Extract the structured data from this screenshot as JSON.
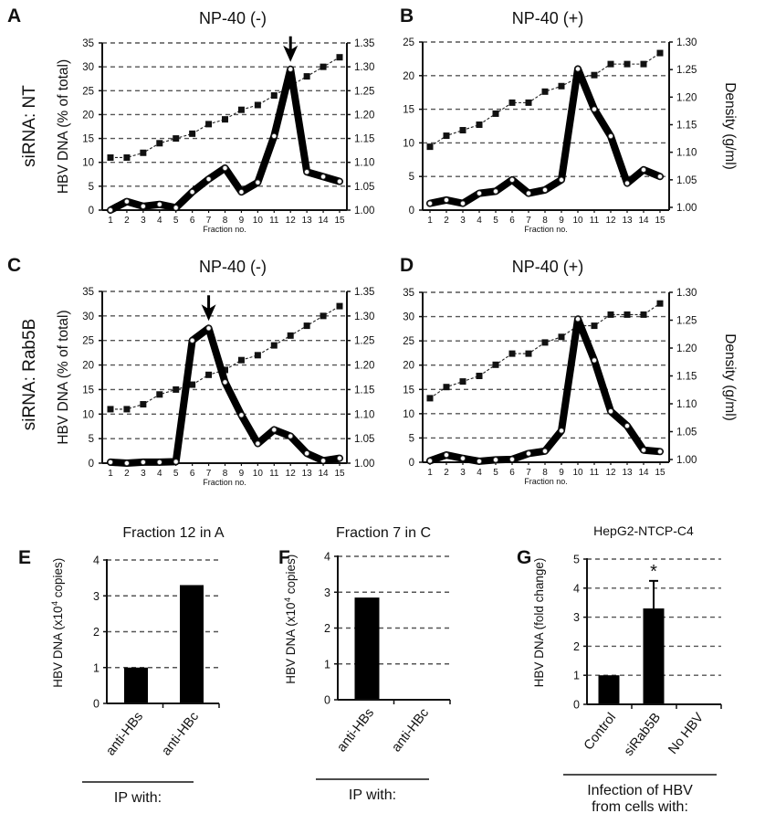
{
  "panel_labels": [
    "A",
    "B",
    "C",
    "D",
    "E",
    "F",
    "G"
  ],
  "row_labels": [
    "siRNA: NT",
    "siRNA: Rab5B"
  ],
  "chart_data": [
    {
      "type": "line",
      "panel": "A",
      "title": "NP-40 (-)",
      "xlabel": "Fraction no.",
      "ylabel": "HBV DNA (% of total)",
      "ylabel_right": "",
      "x": [
        1,
        2,
        3,
        4,
        5,
        6,
        7,
        8,
        9,
        10,
        11,
        12,
        13,
        14,
        15
      ],
      "ylim": [
        0,
        35
      ],
      "yticks": [
        0,
        5,
        10,
        15,
        20,
        25,
        30,
        35
      ],
      "ylim_right": [
        1.0,
        1.35
      ],
      "yticks_right": [
        "1.00",
        "1.05",
        "1.10",
        "1.15",
        "1.20",
        "1.25",
        "1.30",
        "1.35"
      ],
      "grid": true,
      "arrow_at": 12,
      "series": [
        {
          "axis": "left",
          "style": "thick",
          "values": [
            0,
            1.8,
            0.8,
            1.2,
            0.5,
            3.8,
            6.5,
            8.8,
            3.8,
            5.8,
            15.5,
            29.5,
            8,
            7,
            6
          ]
        },
        {
          "axis": "right",
          "style": "dashed-squares",
          "values": [
            1.11,
            1.11,
            1.12,
            1.14,
            1.15,
            1.16,
            1.18,
            1.19,
            1.21,
            1.22,
            1.24,
            1.26,
            1.28,
            1.3,
            1.32
          ]
        }
      ]
    },
    {
      "type": "line",
      "panel": "B",
      "title": "NP-40 (+)",
      "xlabel": "Fraction no.",
      "ylabel": "",
      "ylabel_right": "Density (g/ml)",
      "x": [
        1,
        2,
        3,
        4,
        5,
        6,
        7,
        8,
        9,
        10,
        11,
        12,
        13,
        14,
        15
      ],
      "ylim": [
        0,
        25
      ],
      "yticks": [
        0,
        5,
        10,
        15,
        20,
        25
      ],
      "ylim_right": [
        1.0,
        1.3
      ],
      "yticks_right": [
        "1.00",
        "1.05",
        "1.10",
        "1.15",
        "1.20",
        "1.25",
        "1.30"
      ],
      "grid": true,
      "series": [
        {
          "axis": "left",
          "style": "thick",
          "values": [
            1,
            1.5,
            1,
            2.5,
            2.8,
            4.5,
            2.5,
            3,
            4.5,
            21,
            15,
            11,
            4,
            6,
            5
          ]
        },
        {
          "axis": "right",
          "style": "dashed-squares",
          "values": [
            1.11,
            1.13,
            1.14,
            1.15,
            1.17,
            1.19,
            1.19,
            1.21,
            1.22,
            1.235,
            1.24,
            1.26,
            1.26,
            1.26,
            1.28
          ]
        }
      ]
    },
    {
      "type": "line",
      "panel": "C",
      "title": "NP-40 (-)",
      "xlabel": "Fraction no.",
      "ylabel": "HBV DNA (% of total)",
      "ylabel_right": "",
      "x": [
        1,
        2,
        3,
        4,
        5,
        6,
        7,
        8,
        9,
        10,
        11,
        12,
        13,
        14,
        15
      ],
      "ylim": [
        0,
        35
      ],
      "yticks": [
        0,
        5,
        10,
        15,
        20,
        25,
        30,
        35
      ],
      "ylim_right": [
        1.0,
        1.35
      ],
      "yticks_right": [
        "1.00",
        "1.05",
        "1.10",
        "1.15",
        "1.20",
        "1.25",
        "1.30",
        "1.35"
      ],
      "grid": true,
      "arrow_at": 7,
      "series": [
        {
          "axis": "left",
          "style": "thick",
          "values": [
            0.2,
            0,
            0.2,
            0.2,
            0.3,
            25,
            27.5,
            16.5,
            9.8,
            4,
            6.8,
            5.5,
            2,
            0.5,
            1
          ]
        },
        {
          "axis": "right",
          "style": "dashed-squares",
          "values": [
            1.11,
            1.11,
            1.12,
            1.14,
            1.15,
            1.16,
            1.18,
            1.19,
            1.21,
            1.22,
            1.24,
            1.26,
            1.28,
            1.3,
            1.32
          ]
        }
      ]
    },
    {
      "type": "line",
      "panel": "D",
      "title": "NP-40 (+)",
      "xlabel": "Fraction no.",
      "ylabel": "",
      "ylabel_right": "Density (g/ml)",
      "x": [
        1,
        2,
        3,
        4,
        5,
        6,
        7,
        8,
        9,
        10,
        11,
        12,
        13,
        14,
        15
      ],
      "ylim": [
        0,
        35
      ],
      "yticks": [
        0,
        5,
        10,
        15,
        20,
        25,
        30,
        35
      ],
      "ylim_right": [
        1.0,
        1.3
      ],
      "yticks_right": [
        "1.00",
        "1.05",
        "1.10",
        "1.15",
        "1.20",
        "1.25",
        "1.30"
      ],
      "grid": true,
      "series": [
        {
          "axis": "left",
          "style": "thick",
          "values": [
            0.3,
            1.5,
            0.8,
            0.2,
            0.5,
            0.6,
            1.8,
            2.3,
            6.5,
            29.5,
            21,
            10.5,
            7.5,
            2.5,
            2.2
          ]
        },
        {
          "axis": "right",
          "style": "dashed-squares",
          "values": [
            1.11,
            1.13,
            1.14,
            1.15,
            1.17,
            1.19,
            1.19,
            1.21,
            1.22,
            1.24,
            1.24,
            1.26,
            1.26,
            1.26,
            1.28
          ]
        }
      ]
    },
    {
      "type": "bar",
      "panel": "E",
      "title": "Fraction 12 in A",
      "ylabel": "HBV DNA (x10^4 copies)",
      "ylabel_main": "HBV DNA (x10",
      "ylabel_sup": "4",
      "ylabel_end": " copies)",
      "categories": [
        "anti-HBs",
        "anti-HBc"
      ],
      "values": [
        1.0,
        3.3
      ],
      "ylim": [
        0,
        4
      ],
      "yticks": [
        0,
        1,
        2,
        3,
        4
      ],
      "grid": true,
      "group_label": "IP with:"
    },
    {
      "type": "bar",
      "panel": "F",
      "title": "Fraction 7 in C",
      "ylabel": "HBV DNA (x10^4 copies)",
      "ylabel_main": "HBV DNA (x10",
      "ylabel_sup": "4",
      "ylabel_end": " copies)",
      "categories": [
        "anti-HBs",
        "anti-HBc"
      ],
      "values": [
        2.85,
        0
      ],
      "ylim": [
        0,
        4
      ],
      "yticks": [
        0,
        1,
        2,
        3,
        4
      ],
      "grid": true,
      "group_label": "IP with:"
    },
    {
      "type": "bar",
      "panel": "G",
      "title": "HepG2-NTCP-C4",
      "ylabel": "HBV DNA (fold change)",
      "categories": [
        "Control",
        "siRab5B",
        "No HBV"
      ],
      "values": [
        1.0,
        3.3,
        0
      ],
      "errors": [
        0,
        0.95,
        0
      ],
      "annotations": [
        "",
        "*",
        ""
      ],
      "ylim": [
        0,
        5
      ],
      "yticks": [
        0,
        1,
        2,
        3,
        4,
        5
      ],
      "grid": true,
      "group_label": "Infection of HBV",
      "group_label_2": "from cells with:"
    }
  ]
}
